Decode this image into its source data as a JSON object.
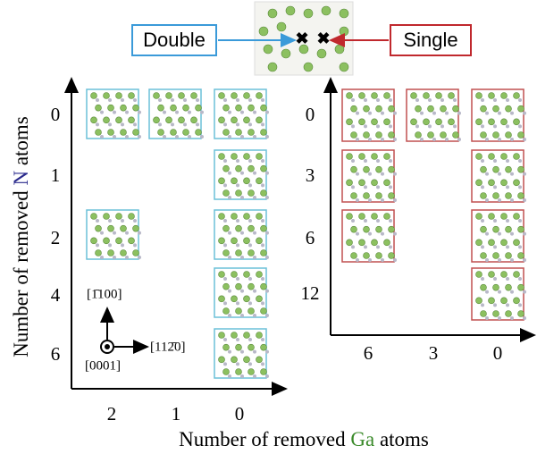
{
  "inset": {
    "double_label": "Double",
    "single_label": "Single"
  },
  "y_axis_label": [
    "Number of removed ",
    "N",
    " atoms"
  ],
  "x_axis_label": [
    "Number of removed ",
    "Ga",
    " atoms"
  ],
  "left_panel": {
    "y_ticks": [
      "0",
      "1",
      "2",
      "4",
      "6"
    ],
    "x_ticks": [
      "2",
      "1",
      "0"
    ],
    "directions": [
      "[1̄100]",
      "[0001]",
      "[112̄0]"
    ]
  },
  "right_panel": {
    "y_ticks": [
      "0",
      "3",
      "6",
      "12"
    ],
    "x_ticks": [
      "6",
      "3",
      "0"
    ]
  }
}
